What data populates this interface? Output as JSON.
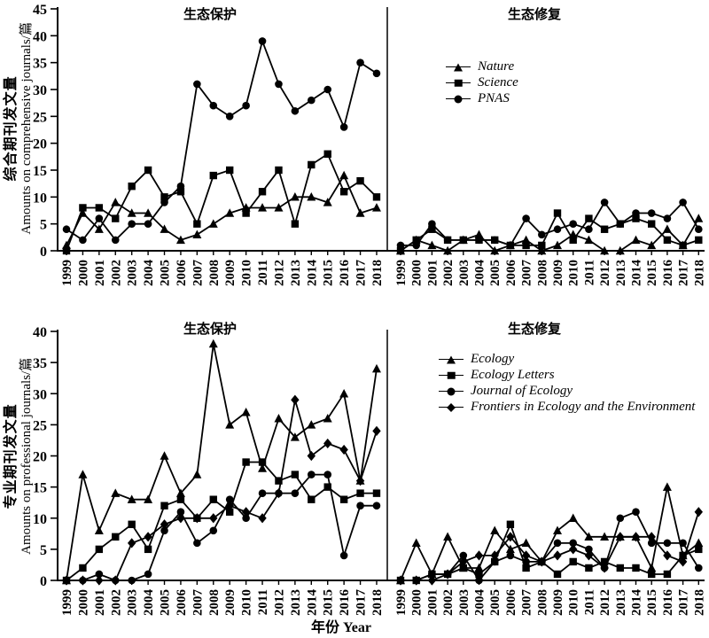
{
  "colors": {
    "foreground": "#000000",
    "background": "#ffffff"
  },
  "labels": {
    "row1_ylabel_zh": "综合期刊发文量",
    "row1_ylabel_en": "Amounts on comprehensive journals/篇",
    "row2_ylabel_zh": "专业期刊发文量",
    "row2_ylabel_en": "Amounts on professional journals/篇",
    "xlabel": "年份 Year"
  },
  "chart_data": [
    {
      "type": "line",
      "panel": "top-left",
      "title": "生态保护",
      "ylabel": "综合期刊发文量 Amounts on comprehensive journals/篇",
      "xlabel": "年份 Year",
      "ylim": [
        0,
        45
      ],
      "ytick_step": 5,
      "grid": false,
      "x": [
        "1999",
        "2000",
        "2001",
        "2002",
        "2003",
        "2004",
        "2005",
        "2006",
        "2007",
        "2008",
        "2009",
        "2010",
        "2011",
        "2012",
        "2013",
        "2014",
        "2015",
        "2016",
        "2017",
        "2018"
      ],
      "series": [
        {
          "name": "Nature",
          "marker": "triangle",
          "values": [
            1,
            7,
            4,
            9,
            7,
            7,
            4,
            2,
            3,
            5,
            7,
            8,
            8,
            8,
            10,
            10,
            9,
            14,
            7,
            8
          ]
        },
        {
          "name": "Science",
          "marker": "square",
          "values": [
            0,
            8,
            8,
            6,
            12,
            15,
            10,
            11,
            5,
            14,
            15,
            7,
            11,
            15,
            5,
            16,
            18,
            11,
            13,
            10
          ]
        },
        {
          "name": "PNAS",
          "marker": "circle",
          "values": [
            4,
            2,
            6,
            2,
            5,
            5,
            9,
            12,
            31,
            27,
            25,
            27,
            39,
            31,
            26,
            28,
            30,
            23,
            35,
            33
          ]
        }
      ]
    },
    {
      "type": "line",
      "panel": "top-right",
      "title": "生态修复",
      "ylabel": "综合期刊发文量 Amounts on comprehensive journals/篇",
      "xlabel": "年份 Year",
      "ylim": [
        0,
        45
      ],
      "ytick_step": 5,
      "grid": false,
      "legend_position": "upper-left-of-panel",
      "x": [
        "1999",
        "2000",
        "2001",
        "2002",
        "2003",
        "2004",
        "2005",
        "2006",
        "2007",
        "2008",
        "2009",
        "2010",
        "2011",
        "2012",
        "2013",
        "2014",
        "2015",
        "2016",
        "2017",
        "2018"
      ],
      "series": [
        {
          "name": "Nature",
          "marker": "triangle",
          "values": [
            0,
            2,
            1,
            0,
            2,
            3,
            0,
            1,
            2,
            0,
            1,
            3,
            2,
            0,
            0,
            2,
            1,
            4,
            1,
            6
          ]
        },
        {
          "name": "Science",
          "marker": "square",
          "values": [
            0,
            2,
            4,
            2,
            2,
            2,
            2,
            1,
            1,
            1,
            7,
            2,
            6,
            4,
            5,
            6,
            5,
            2,
            1,
            2
          ]
        },
        {
          "name": "PNAS",
          "marker": "circle",
          "values": [
            1,
            1,
            5,
            2,
            2,
            2,
            2,
            1,
            6,
            3,
            4,
            5,
            4,
            9,
            5,
            7,
            7,
            6,
            9,
            4
          ]
        }
      ]
    },
    {
      "type": "line",
      "panel": "bottom-left",
      "title": "生态保护",
      "ylabel": "专业期刊发文量 Amounts on professional journals/篇",
      "xlabel": "年份 Year",
      "ylim": [
        0,
        40
      ],
      "ytick_step": 5,
      "grid": false,
      "x": [
        "1999",
        "2000",
        "2001",
        "2002",
        "2003",
        "2004",
        "2005",
        "2006",
        "2007",
        "2008",
        "2009",
        "2010",
        "2011",
        "2012",
        "2013",
        "2014",
        "2015",
        "2016",
        "2017",
        "2018"
      ],
      "series": [
        {
          "name": "Ecology",
          "marker": "triangle",
          "values": [
            0,
            17,
            8,
            14,
            13,
            13,
            20,
            14,
            17,
            38,
            25,
            27,
            18,
            26,
            23,
            25,
            26,
            30,
            16,
            34
          ]
        },
        {
          "name": "Ecology Letters",
          "marker": "square",
          "values": [
            0,
            2,
            5,
            7,
            9,
            5,
            12,
            13,
            10,
            13,
            11,
            19,
            19,
            16,
            17,
            13,
            15,
            13,
            14,
            14
          ]
        },
        {
          "name": "Journal of Ecology",
          "marker": "circle",
          "values": [
            0,
            0,
            1,
            0,
            0,
            1,
            8,
            11,
            6,
            8,
            13,
            10,
            14,
            14,
            14,
            17,
            17,
            4,
            12,
            12
          ]
        },
        {
          "name": "Frontiers in Ecology and the Environment",
          "marker": "diamond",
          "values": [
            0,
            0,
            0,
            0,
            6,
            7,
            9,
            10,
            10,
            10,
            12,
            11,
            10,
            14,
            29,
            20,
            22,
            21,
            16,
            24
          ]
        }
      ]
    },
    {
      "type": "line",
      "panel": "bottom-right",
      "title": "生态修复",
      "ylabel": "专业期刊发文量 Amounts on professional journals/篇",
      "xlabel": "年份 Year",
      "ylim": [
        0,
        40
      ],
      "ytick_step": 5,
      "grid": false,
      "legend_position": "upper-left-of-panel",
      "x": [
        "1999",
        "2000",
        "2001",
        "2002",
        "2003",
        "2004",
        "2005",
        "2006",
        "2007",
        "2008",
        "2009",
        "2010",
        "2011",
        "2012",
        "2013",
        "2014",
        "2015",
        "2016",
        "2017",
        "2018"
      ],
      "series": [
        {
          "name": "Ecology",
          "marker": "triangle",
          "values": [
            0,
            6,
            1,
            7,
            2,
            2,
            8,
            5,
            6,
            3,
            8,
            10,
            7,
            7,
            7,
            7,
            2,
            15,
            4,
            6
          ]
        },
        {
          "name": "Ecology Letters",
          "marker": "square",
          "values": [
            0,
            0,
            1,
            1,
            2,
            1,
            3,
            9,
            2,
            3,
            1,
            3,
            2,
            3,
            2,
            2,
            1,
            1,
            4,
            5
          ]
        },
        {
          "name": "Journal of Ecology",
          "marker": "circle",
          "values": [
            0,
            0,
            1,
            1,
            4,
            0,
            3,
            4,
            3,
            3,
            6,
            6,
            5,
            2,
            10,
            11,
            6,
            6,
            6,
            2
          ]
        },
        {
          "name": "Frontiers in Ecology and the Environment",
          "marker": "diamond",
          "values": [
            0,
            0,
            0,
            1,
            3,
            4,
            4,
            7,
            4,
            3,
            4,
            5,
            4,
            2,
            7,
            7,
            7,
            4,
            3,
            11
          ]
        }
      ]
    }
  ]
}
